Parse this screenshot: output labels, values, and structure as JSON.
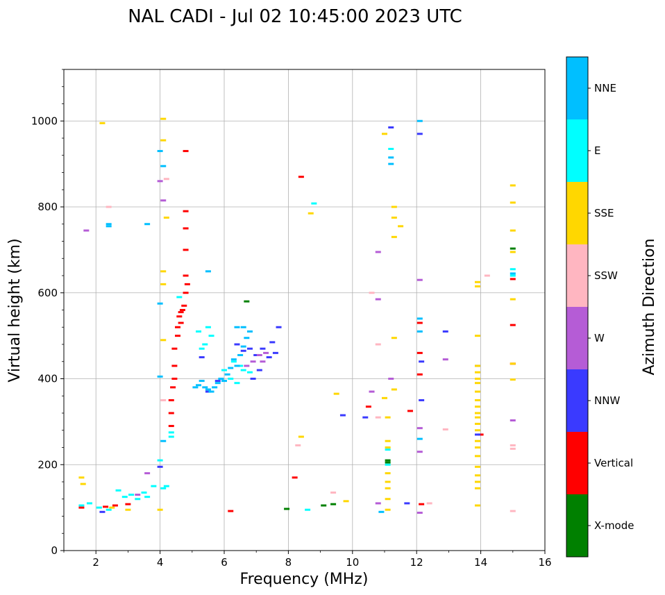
{
  "chart_data": {
    "type": "scatter",
    "title": "NAL CADI - Jul 02 10:45:00 2023 UTC",
    "xlabel": "Frequency (MHz)",
    "ylabel": "Virtual height (km)",
    "xlim": [
      1,
      16
    ],
    "ylim": [
      0,
      1120
    ],
    "xticks": [
      2,
      4,
      6,
      8,
      10,
      12,
      14,
      16
    ],
    "yticks": [
      0,
      200,
      400,
      600,
      800,
      1000
    ],
    "grid": true,
    "colorbar": {
      "label": "Azimuth Direction",
      "categories": [
        {
          "name": "X-mode",
          "color": "#008000"
        },
        {
          "name": "Vertical",
          "color": "#ff0000"
        },
        {
          "name": "NNW",
          "color": "#3a3aff"
        },
        {
          "name": "W",
          "color": "#b55cd6"
        },
        {
          "name": "SSW",
          "color": "#ffb6c1"
        },
        {
          "name": "SSE",
          "color": "#ffd700"
        },
        {
          "name": "E",
          "color": "#00ffff"
        },
        {
          "name": "NNE",
          "color": "#00bfff"
        }
      ]
    },
    "series": [
      {
        "name": "X-mode",
        "points": [
          [
            6.7,
            580
          ],
          [
            7.95,
            97
          ],
          [
            9.1,
            105
          ],
          [
            9.4,
            108
          ],
          [
            11.1,
            205
          ],
          [
            11.1,
            210
          ],
          [
            15.0,
            703
          ]
        ]
      },
      {
        "name": "Vertical",
        "points": [
          [
            1.55,
            100
          ],
          [
            2.3,
            102
          ],
          [
            2.6,
            105
          ],
          [
            3.0,
            108
          ],
          [
            4.35,
            290
          ],
          [
            4.35,
            320
          ],
          [
            4.35,
            350
          ],
          [
            4.4,
            380
          ],
          [
            4.45,
            430
          ],
          [
            4.45,
            470
          ],
          [
            4.55,
            520
          ],
          [
            4.6,
            545
          ],
          [
            4.65,
            555
          ],
          [
            4.75,
            570
          ],
          [
            4.8,
            600
          ],
          [
            4.85,
            620
          ],
          [
            4.8,
            640
          ],
          [
            4.8,
            700
          ],
          [
            4.8,
            750
          ],
          [
            4.8,
            790
          ],
          [
            4.8,
            930
          ],
          [
            4.65,
            530
          ],
          [
            4.7,
            560
          ],
          [
            4.55,
            500
          ],
          [
            4.45,
            400
          ],
          [
            6.2,
            92
          ],
          [
            8.2,
            170
          ],
          [
            8.4,
            870
          ],
          [
            10.5,
            335
          ],
          [
            11.8,
            325
          ],
          [
            12.1,
            530
          ],
          [
            12.1,
            460
          ],
          [
            12.1,
            410
          ],
          [
            14.0,
            270
          ],
          [
            15.0,
            525
          ],
          [
            15.0,
            632
          ],
          [
            15.0,
            435
          ],
          [
            12.15,
            108
          ]
        ]
      },
      {
        "name": "NNW",
        "points": [
          [
            2.2,
            90
          ],
          [
            4.0,
            195
          ],
          [
            5.3,
            450
          ],
          [
            5.5,
            370
          ],
          [
            5.8,
            395
          ],
          [
            6.4,
            480
          ],
          [
            6.6,
            465
          ],
          [
            6.8,
            470
          ],
          [
            7.0,
            455
          ],
          [
            7.2,
            470
          ],
          [
            7.4,
            450
          ],
          [
            7.6,
            460
          ],
          [
            7.5,
            485
          ],
          [
            7.7,
            520
          ],
          [
            6.9,
            400
          ],
          [
            7.1,
            420
          ],
          [
            9.7,
            315
          ],
          [
            10.4,
            310
          ],
          [
            11.2,
            985
          ],
          [
            12.1,
            970
          ],
          [
            12.15,
            440
          ],
          [
            12.15,
            350
          ],
          [
            12.9,
            510
          ],
          [
            13.9,
            270
          ],
          [
            13.9,
            430
          ],
          [
            11.7,
            110
          ]
        ]
      },
      {
        "name": "W",
        "points": [
          [
            1.7,
            745
          ],
          [
            3.3,
            130
          ],
          [
            3.6,
            180
          ],
          [
            4.0,
            860
          ],
          [
            4.1,
            815
          ],
          [
            6.7,
            430
          ],
          [
            6.9,
            440
          ],
          [
            7.1,
            455
          ],
          [
            7.3,
            460
          ],
          [
            7.2,
            440
          ],
          [
            10.6,
            370
          ],
          [
            10.8,
            695
          ],
          [
            10.8,
            585
          ],
          [
            10.8,
            110
          ],
          [
            11.2,
            400
          ],
          [
            12.1,
            630
          ],
          [
            12.1,
            285
          ],
          [
            12.1,
            230
          ],
          [
            12.9,
            445
          ],
          [
            15.0,
            303
          ],
          [
            12.1,
            88
          ]
        ]
      },
      {
        "name": "SSW",
        "points": [
          [
            2.4,
            800
          ],
          [
            4.1,
            350
          ],
          [
            4.2,
            865
          ],
          [
            8.3,
            245
          ],
          [
            9.4,
            135
          ],
          [
            10.6,
            600
          ],
          [
            10.8,
            480
          ],
          [
            12.4,
            110
          ],
          [
            12.9,
            282
          ],
          [
            14.2,
            640
          ],
          [
            15.0,
            245
          ],
          [
            15.0,
            237
          ],
          [
            15.0,
            92
          ],
          [
            10.8,
            310
          ]
        ]
      },
      {
        "name": "SSE",
        "points": [
          [
            1.55,
            170
          ],
          [
            1.6,
            155
          ],
          [
            2.2,
            995
          ],
          [
            2.5,
            100
          ],
          [
            3.0,
            95
          ],
          [
            4.1,
            1005
          ],
          [
            4.1,
            955
          ],
          [
            4.1,
            650
          ],
          [
            4.1,
            620
          ],
          [
            4.1,
            490
          ],
          [
            4.2,
            775
          ],
          [
            4.0,
            95
          ],
          [
            8.4,
            265
          ],
          [
            8.7,
            785
          ],
          [
            9.5,
            365
          ],
          [
            9.8,
            115
          ],
          [
            11.0,
            970
          ],
          [
            11.0,
            355
          ],
          [
            11.1,
            310
          ],
          [
            11.1,
            255
          ],
          [
            11.1,
            240
          ],
          [
            11.1,
            180
          ],
          [
            11.1,
            160
          ],
          [
            11.1,
            145
          ],
          [
            11.1,
            120
          ],
          [
            11.1,
            95
          ],
          [
            11.3,
            800
          ],
          [
            11.3,
            775
          ],
          [
            11.3,
            730
          ],
          [
            11.3,
            495
          ],
          [
            11.3,
            375
          ],
          [
            11.5,
            755
          ],
          [
            13.9,
            625
          ],
          [
            13.9,
            615
          ],
          [
            13.9,
            500
          ],
          [
            13.9,
            430
          ],
          [
            13.9,
            415
          ],
          [
            13.9,
            400
          ],
          [
            13.9,
            390
          ],
          [
            13.9,
            370
          ],
          [
            13.9,
            350
          ],
          [
            13.9,
            335
          ],
          [
            13.9,
            320
          ],
          [
            13.9,
            310
          ],
          [
            13.9,
            295
          ],
          [
            13.9,
            280
          ],
          [
            13.9,
            255
          ],
          [
            13.9,
            240
          ],
          [
            13.9,
            220
          ],
          [
            13.9,
            195
          ],
          [
            13.9,
            175
          ],
          [
            13.9,
            160
          ],
          [
            13.9,
            145
          ],
          [
            13.9,
            105
          ],
          [
            15.0,
            850
          ],
          [
            15.0,
            810
          ],
          [
            15.0,
            745
          ],
          [
            15.0,
            695
          ],
          [
            15.0,
            585
          ],
          [
            15.0,
            435
          ],
          [
            15.0,
            398
          ]
        ]
      },
      {
        "name": "E",
        "points": [
          [
            1.55,
            105
          ],
          [
            1.8,
            110
          ],
          [
            2.1,
            100
          ],
          [
            2.4,
            95
          ],
          [
            2.7,
            140
          ],
          [
            2.9,
            125
          ],
          [
            3.1,
            130
          ],
          [
            3.3,
            120
          ],
          [
            3.5,
            135
          ],
          [
            3.6,
            125
          ],
          [
            3.8,
            150
          ],
          [
            4.1,
            145
          ],
          [
            4.2,
            150
          ],
          [
            4.0,
            210
          ],
          [
            4.35,
            265
          ],
          [
            4.35,
            275
          ],
          [
            5.2,
            510
          ],
          [
            5.3,
            470
          ],
          [
            5.4,
            480
          ],
          [
            5.5,
            520
          ],
          [
            5.6,
            500
          ],
          [
            6.0,
            420
          ],
          [
            6.3,
            440
          ],
          [
            6.5,
            430
          ],
          [
            6.6,
            420
          ],
          [
            6.8,
            415
          ],
          [
            6.2,
            400
          ],
          [
            6.4,
            390
          ],
          [
            8.8,
            808
          ],
          [
            11.2,
            935
          ],
          [
            11.1,
            235
          ],
          [
            11.1,
            200
          ],
          [
            15.0,
            655
          ],
          [
            15.0,
            640
          ],
          [
            8.6,
            95
          ],
          [
            4.6,
            590
          ]
        ]
      },
      {
        "name": "NNE",
        "points": [
          [
            2.4,
            760
          ],
          [
            2.4,
            755
          ],
          [
            3.6,
            760
          ],
          [
            4.0,
            930
          ],
          [
            4.0,
            575
          ],
          [
            4.0,
            405
          ],
          [
            4.1,
            895
          ],
          [
            4.1,
            255
          ],
          [
            5.1,
            380
          ],
          [
            5.2,
            385
          ],
          [
            5.3,
            395
          ],
          [
            5.4,
            380
          ],
          [
            5.5,
            375
          ],
          [
            5.6,
            370
          ],
          [
            5.7,
            380
          ],
          [
            5.8,
            390
          ],
          [
            5.9,
            400
          ],
          [
            6.0,
            395
          ],
          [
            6.1,
            410
          ],
          [
            6.2,
            425
          ],
          [
            6.3,
            445
          ],
          [
            6.4,
            430
          ],
          [
            6.5,
            455
          ],
          [
            6.6,
            475
          ],
          [
            6.7,
            495
          ],
          [
            6.8,
            510
          ],
          [
            5.5,
            650
          ],
          [
            6.4,
            520
          ],
          [
            6.6,
            520
          ],
          [
            10.9,
            90
          ],
          [
            11.2,
            915
          ],
          [
            11.2,
            900
          ],
          [
            12.1,
            1000
          ],
          [
            12.1,
            510
          ],
          [
            12.1,
            260
          ],
          [
            12.1,
            540
          ],
          [
            15.0,
            645
          ]
        ]
      }
    ]
  }
}
